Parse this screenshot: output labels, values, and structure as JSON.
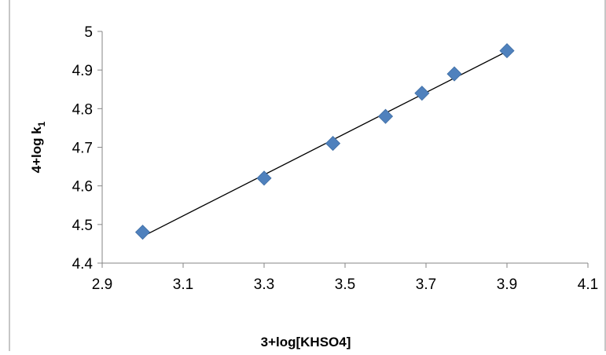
{
  "chart_data": {
    "type": "scatter",
    "title": "",
    "xlabel": "3+log[KHSO4]",
    "ylabel_main": "4+log k",
    "ylabel_sub": "1",
    "xlim": [
      2.9,
      4.1
    ],
    "ylim": [
      4.4,
      5.0
    ],
    "x_ticks": [
      "2.9",
      "3.1",
      "3.3",
      "3.5",
      "3.7",
      "3.9",
      "4.1"
    ],
    "y_ticks": [
      "4.4",
      "4.5",
      "4.6",
      "4.7",
      "4.8",
      "4.9",
      "5"
    ],
    "grid": false,
    "legend": "none",
    "marker": "diamond",
    "marker_color": "#4f81bd",
    "trendline": {
      "type": "linear",
      "color": "#000000"
    },
    "series": [
      {
        "x": [
          3.0,
          3.3,
          3.47,
          3.6,
          3.69,
          3.77,
          3.9
        ],
        "y": [
          4.48,
          4.62,
          4.71,
          4.78,
          4.84,
          4.89,
          4.95
        ]
      }
    ]
  }
}
